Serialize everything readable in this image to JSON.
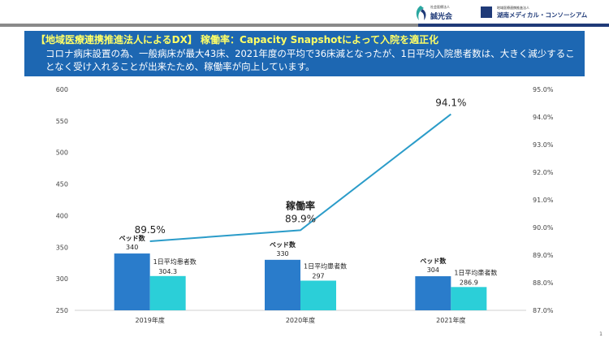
{
  "header": {
    "title": "【地域医療連携推進法人によるDX】 稼働率：Capacity Snapshotによって入院を適正化",
    "description": "コロナ病床設置の為、一般病床が最大43床、2021年度の平均で36床減となったが、1日平均入院患者数は、大きく減少することなく受け入れることが出来たため、稼働率が向上しています。"
  },
  "logos": {
    "org1_small": "社会医療法人",
    "org1_name": "誠光会",
    "org2_small": "地域医療連携推進法人",
    "org2_name": "湖南メディカル・コンソーシアム"
  },
  "page_number": "1",
  "colors": {
    "header_bg": "#1d67b2",
    "header_title": "#ffff66",
    "beds": "#2a7ccb",
    "patients": "#2bcfd8",
    "rate_line": "#2b9cc9"
  },
  "chart_data": {
    "type": "bar",
    "categories": [
      "2019年度",
      "2020年度",
      "2021年度"
    ],
    "series": [
      {
        "name": "ベッド数",
        "values": [
          340,
          330,
          304
        ],
        "labels": [
          "340",
          "330",
          "304"
        ]
      },
      {
        "name": "1日平均患者数",
        "values": [
          304.3,
          297,
          286.9
        ],
        "labels": [
          "304.3",
          "297",
          "286.9"
        ]
      }
    ],
    "line_series": {
      "name": "稼働率",
      "values": [
        89.5,
        89.9,
        94.1
      ],
      "labels": [
        "89.5%",
        "89.9%",
        "94.1%"
      ],
      "axis": "right"
    },
    "ylim_left": [
      250,
      600
    ],
    "yticks_left": [
      "250",
      "300",
      "350",
      "400",
      "450",
      "500",
      "550",
      "600"
    ],
    "ylim_right": [
      87.0,
      95.0
    ],
    "yticks_right": [
      "87.0%",
      "88.0%",
      "89.0%",
      "90.0%",
      "91.0%",
      "92.0%",
      "93.0%",
      "94.0%",
      "95.0%"
    ],
    "grid": false,
    "legend": "none"
  }
}
